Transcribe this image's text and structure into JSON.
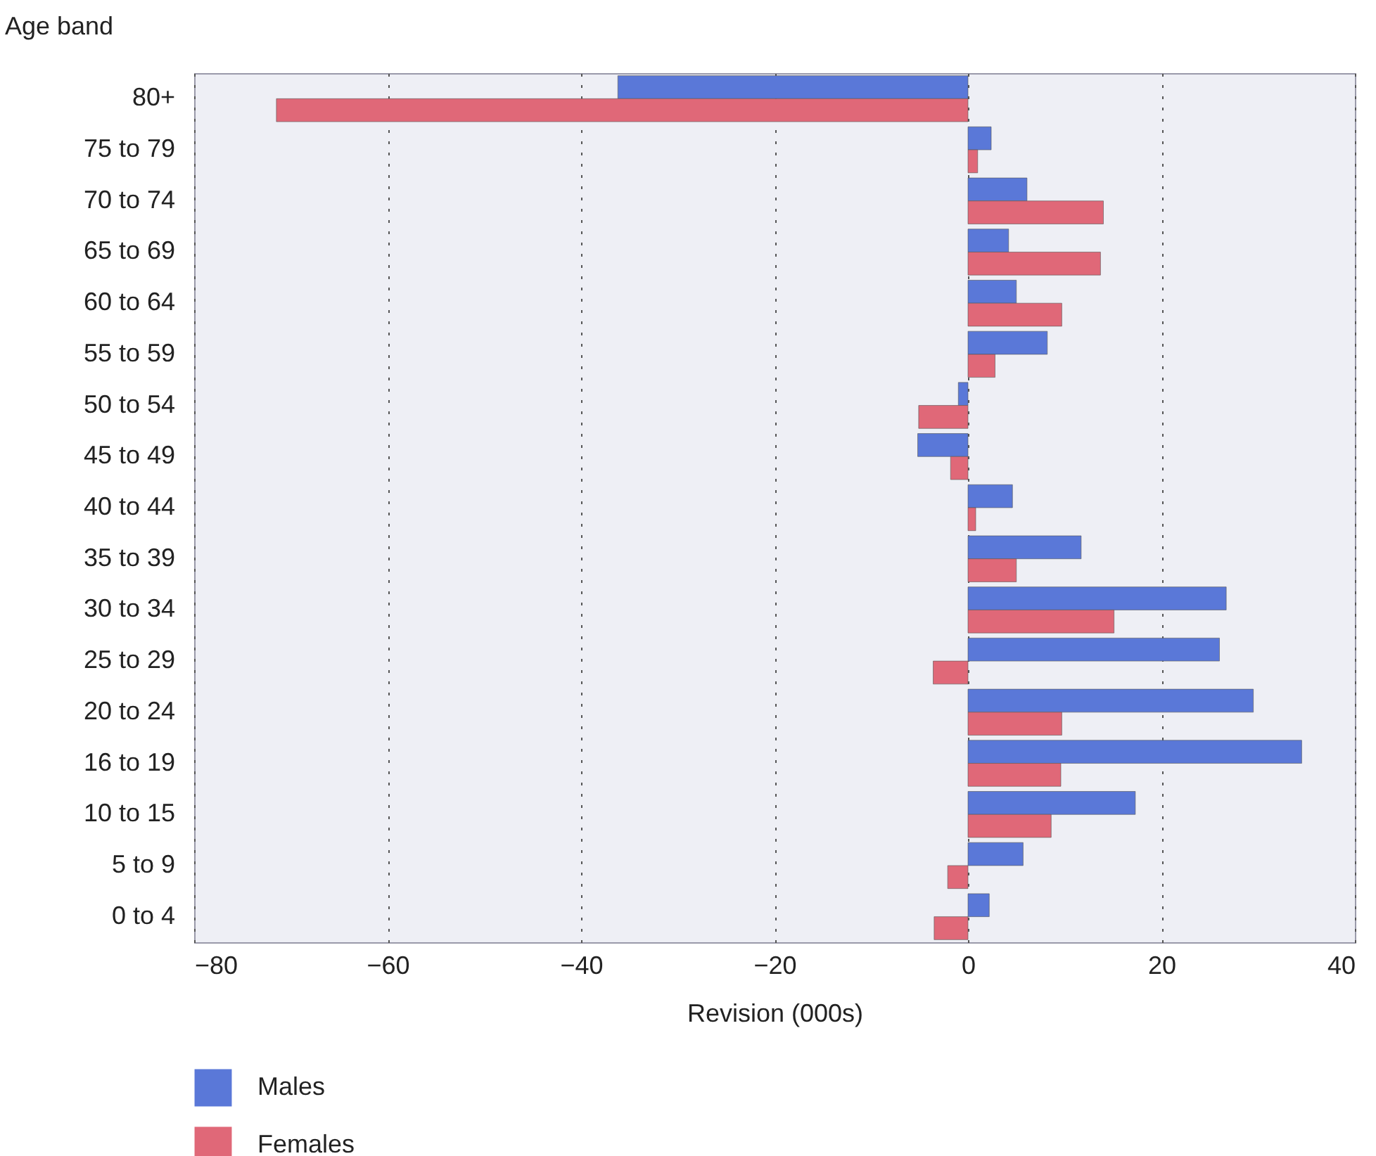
{
  "chart_data": {
    "type": "bar",
    "orientation": "horizontal",
    "ylabel": "Age band",
    "xlabel": "Revision (000s)",
    "categories": [
      "80+",
      "75 to 79",
      "70 to 74",
      "65 to 69",
      "60 to 64",
      "55 to 59",
      "50 to 54",
      "45 to 49",
      "40 to 44",
      "35 to 39",
      "30 to 34",
      "25 to 29",
      "20 to 24",
      "16 to 19",
      "10 to 15",
      "5 to 9",
      "0 to 4"
    ],
    "series": [
      {
        "name": "Males",
        "color": "#5a78d8",
        "values": [
          -36.2,
          2.4,
          6.1,
          4.2,
          5.0,
          8.2,
          -1.0,
          -5.2,
          4.6,
          11.7,
          26.7,
          26.0,
          29.5,
          34.5,
          17.3,
          5.7,
          2.2
        ]
      },
      {
        "name": "Females",
        "color": "#e06878",
        "values": [
          -71.5,
          1.0,
          14.0,
          13.7,
          9.7,
          2.8,
          -5.1,
          -1.8,
          0.8,
          5.0,
          15.1,
          -3.6,
          9.7,
          9.6,
          8.6,
          -2.1,
          -3.5
        ]
      }
    ],
    "xlim": [
      -80,
      40
    ],
    "xticks": [
      -80,
      -60,
      -40,
      -20,
      0,
      20,
      40
    ],
    "grid": "x",
    "legend": "bottom left"
  }
}
